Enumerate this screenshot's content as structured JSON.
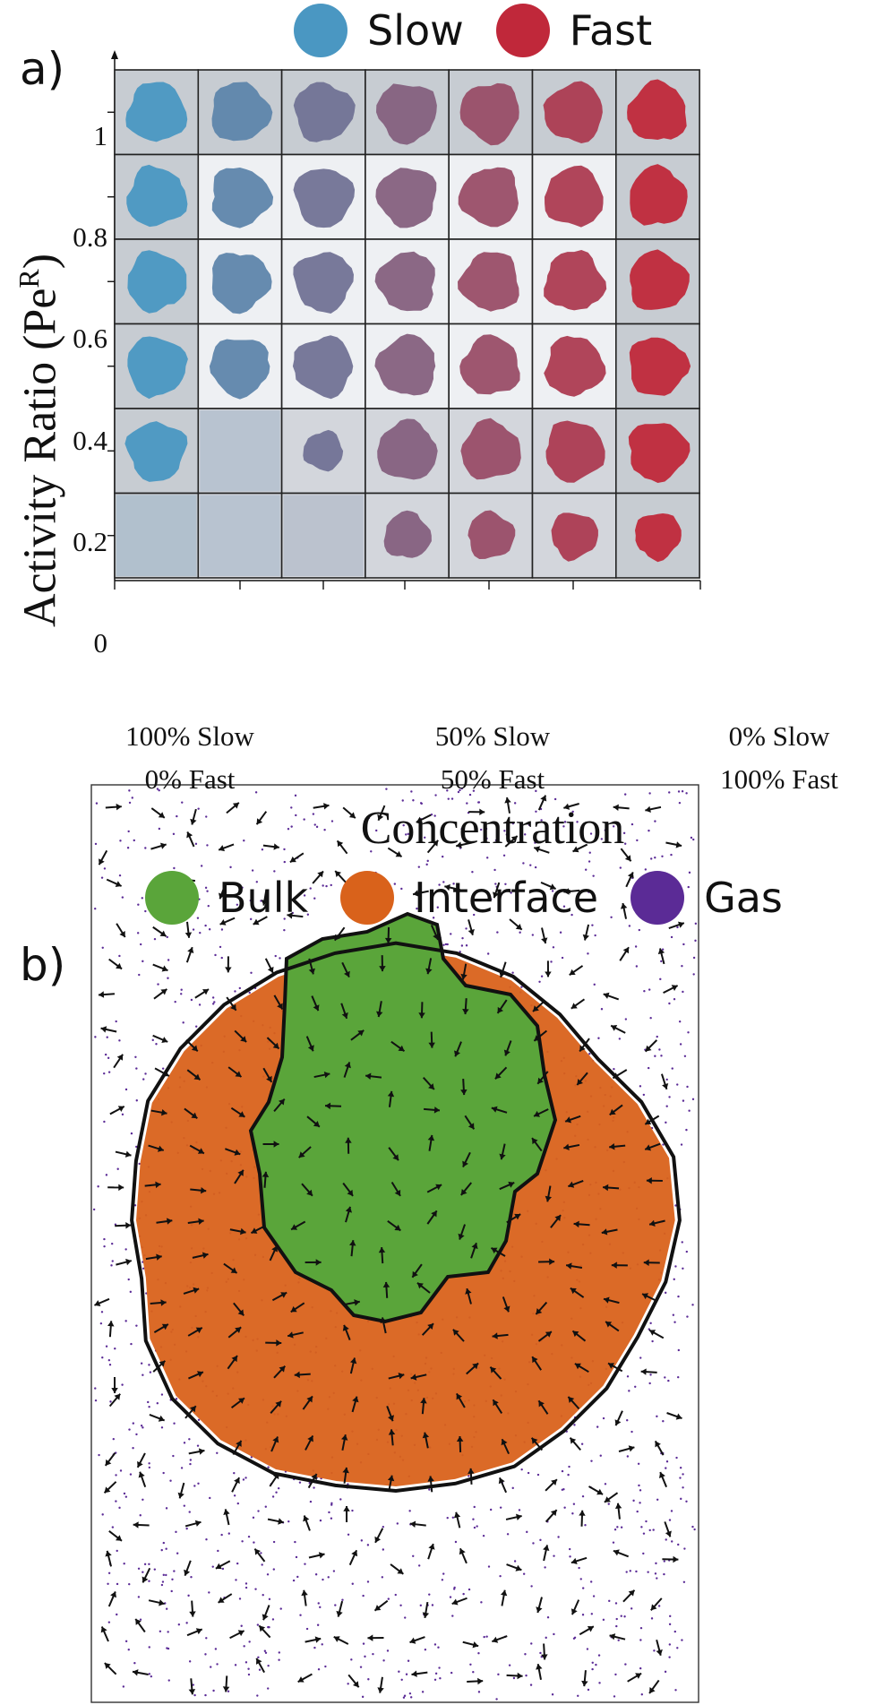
{
  "panel_a": {
    "label": "a)",
    "legend": [
      {
        "name": "Slow",
        "color": "#4a97c2"
      },
      {
        "name": "Fast",
        "color": "#c0283a"
      }
    ],
    "ylabel_main": "Activity Ratio (Pe",
    "ylabel_sup": "R",
    "ylabel_close": ")",
    "yticks": [
      "1",
      "0.8",
      "0.6",
      "0.4",
      "0.2",
      "0"
    ],
    "xticks": [
      {
        "line1": "100% Slow",
        "line2": "0% Fast"
      },
      {
        "line1": "50% Slow",
        "line2": "50% Fast"
      },
      {
        "line1": "0% Slow",
        "line2": "100% Fast"
      }
    ],
    "xlabel": "Concentration",
    "grid_rows": [
      "1",
      "0.8",
      "0.6",
      "0.4",
      "0.2",
      "0"
    ],
    "grid_cols": 7,
    "cluster_present": [
      [
        1,
        1,
        1,
        1,
        1,
        1,
        1
      ],
      [
        1,
        1,
        1,
        1,
        1,
        1,
        1
      ],
      [
        1,
        1,
        1,
        1,
        1,
        1,
        1
      ],
      [
        1,
        1,
        1,
        1,
        1,
        1,
        1
      ],
      [
        1,
        0,
        1,
        1,
        1,
        1,
        1
      ],
      [
        0,
        0,
        0,
        1,
        1,
        1,
        1
      ]
    ]
  },
  "panel_b": {
    "label": "b)",
    "legend": [
      {
        "name": "Bulk",
        "color": "#5aa53a"
      },
      {
        "name": "Interface",
        "color": "#d9621b"
      },
      {
        "name": "Gas",
        "color": "#5b2b96"
      }
    ]
  }
}
